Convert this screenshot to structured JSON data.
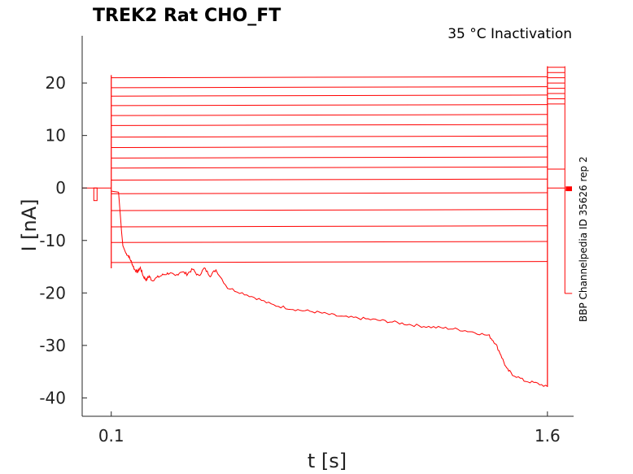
{
  "chart_data": {
    "type": "line",
    "title": "TREK2  Rat  CHO_FT",
    "subtitle": "35 °C  Inactivation",
    "side_label": "BBP Channelpedia ID 35626 rep 2",
    "xlabel": "t [s]",
    "ylabel": "I [nA]",
    "xlim": [
      0.0,
      1.69
    ],
    "ylim": [
      -43.5,
      29
    ],
    "xticks": [
      0.1,
      1.6
    ],
    "yticks": [
      -40,
      -30,
      -20,
      -10,
      0,
      10,
      20
    ],
    "grid": false,
    "color": "#ff0000",
    "protocol": {
      "pulse_start": 0.1,
      "pulse_end": 1.6,
      "post_end": 1.66
    },
    "step_levels": [
      21.2,
      19.3,
      17.7,
      15.9,
      14.0,
      12.1,
      9.9,
      7.9,
      5.9,
      4.0,
      1.7,
      -0.9,
      -4.1,
      -7.2,
      -10.2,
      -14.0
    ],
    "post_levels": [
      23.0,
      22.0,
      21.0,
      20.0,
      19.0,
      18.0,
      17.0,
      16.0,
      3.6,
      0.0
    ],
    "noisy_trace": [
      [
        0.1,
        -0.6
      ],
      [
        0.125,
        -0.8
      ],
      [
        0.135,
        -8
      ],
      [
        0.14,
        -11
      ],
      [
        0.15,
        -12.4
      ],
      [
        0.16,
        -13
      ],
      [
        0.17,
        -14.2
      ],
      [
        0.18,
        -15.5
      ],
      [
        0.19,
        -16
      ],
      [
        0.2,
        -15.2
      ],
      [
        0.21,
        -16.8
      ],
      [
        0.22,
        -17.5
      ],
      [
        0.23,
        -16.8
      ],
      [
        0.24,
        -17.6
      ],
      [
        0.26,
        -17
      ],
      [
        0.28,
        -16.5
      ],
      [
        0.3,
        -16.2
      ],
      [
        0.32,
        -16.8
      ],
      [
        0.34,
        -15.9
      ],
      [
        0.36,
        -16.4
      ],
      [
        0.38,
        -15.5
      ],
      [
        0.4,
        -16.8
      ],
      [
        0.42,
        -15.3
      ],
      [
        0.44,
        -16.7
      ],
      [
        0.46,
        -15.6
      ],
      [
        0.5,
        -19
      ],
      [
        0.55,
        -20
      ],
      [
        0.6,
        -21
      ],
      [
        0.65,
        -22.2
      ],
      [
        0.7,
        -22.8
      ],
      [
        0.75,
        -23.3
      ],
      [
        0.8,
        -23.6
      ],
      [
        0.85,
        -24.1
      ],
      [
        0.9,
        -24.6
      ],
      [
        0.95,
        -24.8
      ],
      [
        1.0,
        -25.1
      ],
      [
        1.05,
        -25.4
      ],
      [
        1.1,
        -25.8
      ],
      [
        1.15,
        -26.2
      ],
      [
        1.2,
        -26.5
      ],
      [
        1.25,
        -26.7
      ],
      [
        1.3,
        -27.0
      ],
      [
        1.35,
        -27.5
      ],
      [
        1.4,
        -28.2
      ],
      [
        1.42,
        -29.5
      ],
      [
        1.44,
        -31.8
      ],
      [
        1.46,
        -34.5
      ],
      [
        1.48,
        -35.5
      ],
      [
        1.52,
        -36.7
      ],
      [
        1.56,
        -37.2
      ],
      [
        1.6,
        -37.8
      ]
    ],
    "noisy_post_level": -20.1,
    "noisy_baseline": -0.9
  }
}
